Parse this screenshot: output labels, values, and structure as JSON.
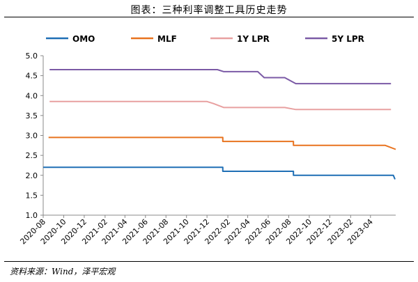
{
  "title": "图表：三种利率调整工具历史走势",
  "source": "资料来源：Wind，泽平宏观",
  "chart_data": {
    "type": "line",
    "ylim": [
      1.0,
      5.0
    ],
    "yticks": [
      "1.0",
      "1.5",
      "2.0",
      "2.5",
      "3.0",
      "3.5",
      "4.0",
      "4.5",
      "5.0"
    ],
    "xticks": [
      "2020-08",
      "2020-10",
      "2020-12",
      "2021-02",
      "2021-04",
      "2021-06",
      "2021-08",
      "2021-10",
      "2021-12",
      "2022-02",
      "2022-04",
      "2022-06",
      "2022-08",
      "2022-10",
      "2022-12",
      "2023-02",
      "2023-04"
    ],
    "legend_position": "top",
    "grid": false,
    "series": [
      {
        "name": "OMO",
        "color": "#1f6fb5",
        "points": [
          [
            "2020-08-01",
            2.2
          ],
          [
            "2022-01-17",
            2.2
          ],
          [
            "2022-01-17",
            2.1
          ],
          [
            "2022-08-15",
            2.1
          ],
          [
            "2022-08-15",
            2.0
          ],
          [
            "2023-06-08",
            2.0
          ],
          [
            "2023-06-13",
            1.9
          ]
        ]
      },
      {
        "name": "MLF",
        "color": "#e8731f",
        "points": [
          [
            "2020-08-17",
            2.95
          ],
          [
            "2022-01-17",
            2.95
          ],
          [
            "2022-01-17",
            2.85
          ],
          [
            "2022-08-15",
            2.85
          ],
          [
            "2022-08-15",
            2.75
          ],
          [
            "2023-05-15",
            2.75
          ],
          [
            "2023-06-15",
            2.65
          ]
        ]
      },
      {
        "name": "1Y LPR",
        "color": "#e8a0a0",
        "points": [
          [
            "2020-08-20",
            3.85
          ],
          [
            "2021-12-01",
            3.85
          ],
          [
            "2021-12-20",
            3.8
          ],
          [
            "2022-01-20",
            3.7
          ],
          [
            "2022-07-20",
            3.7
          ],
          [
            "2022-08-22",
            3.65
          ],
          [
            "2023-06-01",
            3.65
          ]
        ]
      },
      {
        "name": "5Y LPR",
        "color": "#7b5aa6",
        "points": [
          [
            "2020-08-20",
            4.65
          ],
          [
            "2022-01-01",
            4.65
          ],
          [
            "2022-01-20",
            4.6
          ],
          [
            "2022-05-01",
            4.6
          ],
          [
            "2022-05-20",
            4.45
          ],
          [
            "2022-07-20",
            4.45
          ],
          [
            "2022-08-22",
            4.3
          ],
          [
            "2023-06-01",
            4.3
          ]
        ]
      }
    ]
  }
}
